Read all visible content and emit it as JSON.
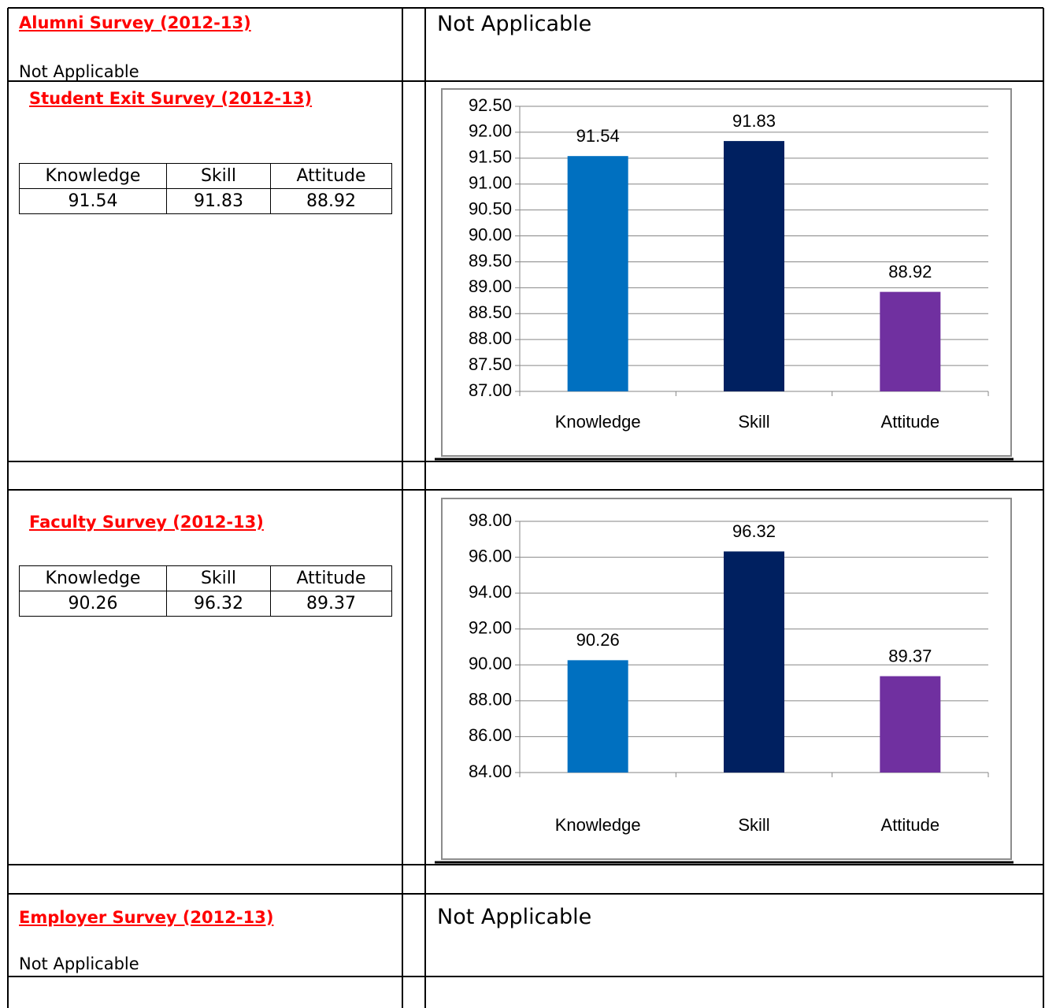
{
  "sections": [
    {
      "title": "Alumni Survey (2012-13)",
      "text": "Not Applicable",
      "right_text": "Not Applicable"
    },
    {
      "title": "Student Exit Survey (2012-13)",
      "table": {
        "header": [
          "Knowledge",
          "Skill",
          "Attitude"
        ],
        "rows": [
          [
            91.54,
            91.83,
            88.92
          ]
        ]
      },
      "chart": {
        "type": "bar",
        "categories": [
          "Knowledge",
          "Skill",
          "Attitude"
        ],
        "values": [
          91.54,
          91.83,
          88.92
        ],
        "colors": [
          "#0070c0",
          "#002060",
          "#7030a0"
        ],
        "ylim": [
          87,
          92.5
        ],
        "yticks": [
          {
            "value": 87,
            "label": "87.00"
          },
          {
            "value": 87.5,
            "label": "87.50"
          },
          {
            "value": 88,
            "label": "88.00"
          },
          {
            "value": 88.5,
            "label": "88.50"
          },
          {
            "value": 89,
            "label": "89.00"
          },
          {
            "value": 89.5,
            "label": "89.50"
          },
          {
            "value": 90,
            "label": "90.00"
          },
          {
            "value": 90.5,
            "label": "90.50"
          },
          {
            "value": 91,
            "label": "91.00"
          },
          {
            "value": 91.5,
            "label": "91.50"
          },
          {
            "value": 92,
            "label": "92.00"
          },
          {
            "value": 92.5,
            "label": "92.50"
          }
        ],
        "grid": true
      }
    },
    {
      "title": "Faculty Survey (2012-13)",
      "table": {
        "header": [
          "Knowledge",
          "Skill",
          "Attitude"
        ],
        "rows": [
          [
            90.26,
            96.32,
            89.37
          ]
        ]
      },
      "chart": {
        "type": "bar",
        "categories": [
          "Knowledge",
          "Skill",
          "Attitude"
        ],
        "values": [
          90.26,
          96.32,
          89.37
        ],
        "colors": [
          "#0070c0",
          "#002060",
          "#7030a0"
        ],
        "ylim": [
          84,
          98
        ],
        "yticks": [
          {
            "value": 84,
            "label": "84.00"
          },
          {
            "value": 86,
            "label": "86.00"
          },
          {
            "value": 88,
            "label": "88.00"
          },
          {
            "value": 90,
            "label": "90.00"
          },
          {
            "value": 92,
            "label": "92.00"
          },
          {
            "value": 94,
            "label": "94.00"
          },
          {
            "value": 96,
            "label": "96.00"
          },
          {
            "value": 98,
            "label": "98.00"
          }
        ],
        "grid": true
      }
    },
    {
      "title": "Employer Survey (2012-13)",
      "text": "Not Applicable",
      "right_text": "Not Applicable"
    }
  ]
}
